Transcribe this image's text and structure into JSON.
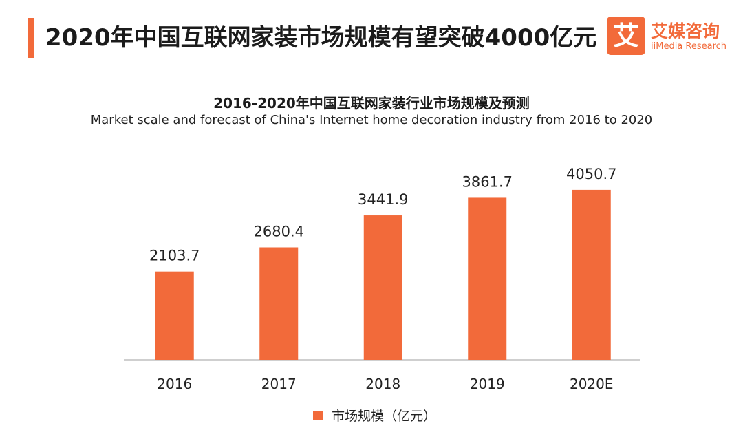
{
  "headline": "2020年中国互联网家装市场规模有望突破4000亿元",
  "logo": {
    "mark": "艾",
    "name_cn": "艾媒咨询",
    "name_en": "iiMedia Research"
  },
  "colors": {
    "accent": "#f26a3a",
    "bar": "#f26a3a",
    "axis": "#bfbfbf"
  },
  "chart_data": {
    "type": "bar",
    "title": "2016-2020年中国互联网家装行业市场规模及预测",
    "subtitle": "Market scale and forecast of China's Internet home decoration industry from 2016 to 2020",
    "categories": [
      "2016",
      "2017",
      "2018",
      "2019",
      "2020E"
    ],
    "series": [
      {
        "name": "市场规模（亿元）",
        "values": [
          2103.7,
          2680.4,
          3441.9,
          3861.7,
          4050.7
        ]
      }
    ],
    "data_labels": [
      "2103.7",
      "2680.4",
      "3441.9",
      "3861.7",
      "4050.7"
    ],
    "ylim": [
      0,
      5000
    ],
    "grid": false,
    "legend": "bottom-center"
  }
}
